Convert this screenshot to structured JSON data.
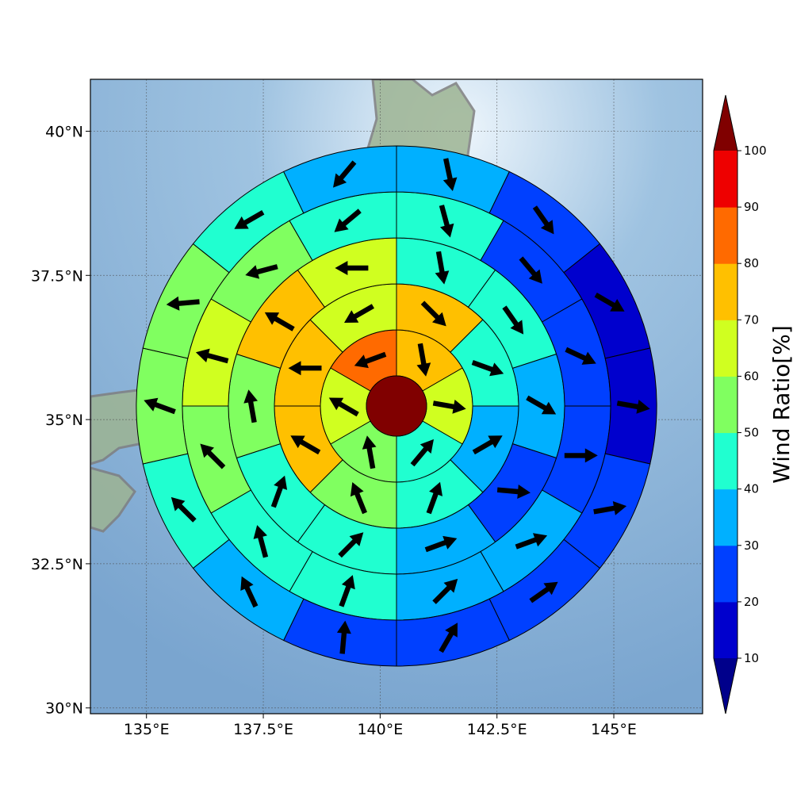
{
  "chart_data": {
    "type": "polar-sector-map",
    "map": {
      "lon_range": [
        133.8,
        146.9
      ],
      "lat_range": [
        29.9,
        40.9
      ],
      "x_ticks": [
        135,
        137.5,
        140,
        142.5,
        145
      ],
      "x_tick_labels": [
        "135°E",
        "137.5°E",
        "140°E",
        "142.5°E",
        "145°E"
      ],
      "y_ticks": [
        30,
        32.5,
        35,
        37.5,
        40
      ],
      "y_tick_labels": [
        "30°N",
        "32.5°N",
        "35°N",
        "37.5°N",
        "40°N"
      ],
      "grid": true,
      "coastline_color": "#7f7f7f"
    },
    "center_value": 100,
    "rings": [
      {
        "sectors": 6,
        "values": [
          75,
          60,
          48,
          58,
          60,
          88
        ],
        "angles": [
          170,
          100,
          40,
          350,
          300,
          250
        ]
      },
      {
        "sectors": 8,
        "values": [
          75,
          45,
          38,
          42,
          55,
          75,
          75,
          64
        ],
        "angles": [
          135,
          110,
          60,
          20,
          338,
          300,
          270,
          240
        ]
      },
      {
        "sectors": 10,
        "values": [
          45,
          45,
          30,
          28,
          38,
          45,
          48,
          55,
          75,
          64
        ],
        "angles": [
          170,
          145,
          120,
          95,
          70,
          45,
          20,
          350,
          300,
          270
        ]
      },
      {
        "sectors": 12,
        "values": [
          45,
          28,
          25,
          25,
          34,
          38,
          45,
          45,
          55,
          64,
          55,
          45
        ],
        "angles": [
          165,
          140,
          115,
          90,
          70,
          45,
          20,
          345,
          315,
          285,
          255,
          230
        ]
      },
      {
        "sectors": 14,
        "values": [
          35,
          22,
          10,
          15,
          25,
          25,
          25,
          25,
          38,
          45,
          55,
          55,
          45,
          38
        ],
        "angles": [
          168,
          145,
          120,
          100,
          80,
          55,
          30,
          5,
          335,
          315,
          290,
          265,
          240,
          220
        ]
      }
    ],
    "colorbar": {
      "title": "Wind Ratio[%]",
      "boundaries": [
        10,
        20,
        30,
        40,
        50,
        60,
        70,
        80,
        90,
        100
      ],
      "tick_labels": [
        "10",
        "20",
        "30",
        "40",
        "50",
        "60",
        "70",
        "80",
        "90",
        "100"
      ],
      "colors": [
        "#0000cd",
        "#0040ff",
        "#00b0ff",
        "#20ffd0",
        "#80ff60",
        "#d0ff20",
        "#ffc000",
        "#ff6a00",
        "#ee0000"
      ],
      "under_color": "#00008b",
      "over_color": "#800000"
    }
  }
}
